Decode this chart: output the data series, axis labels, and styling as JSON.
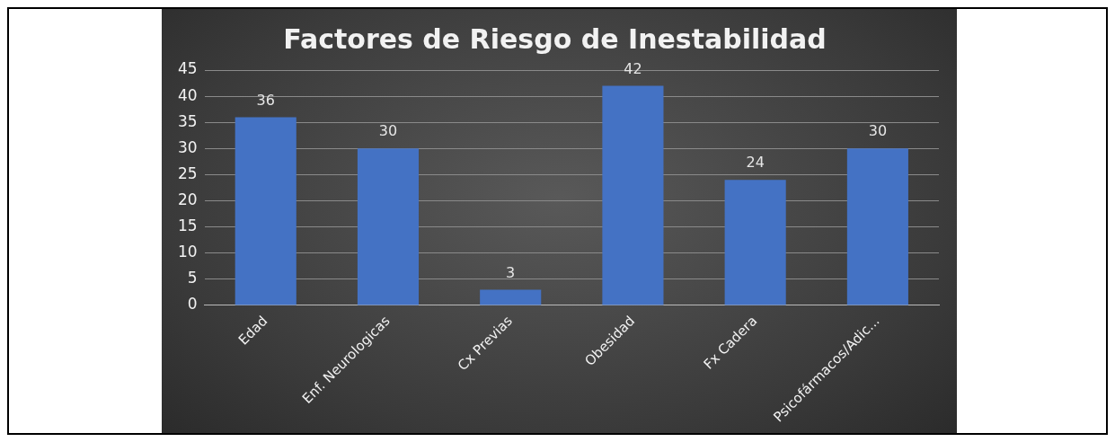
{
  "chart_data": {
    "type": "bar",
    "title": "Factores de Riesgo de Inestabilidad",
    "categories": [
      "Edad",
      "Enf. Neurologicas",
      "Cx Previas",
      "Obesidad",
      "Fx Cadera",
      "Psicofármacos/Adic..."
    ],
    "values": [
      36,
      30,
      3,
      42,
      24,
      30
    ],
    "color": "#4472c4",
    "ylim": [
      0,
      45
    ],
    "yticks": [
      0,
      5,
      10,
      15,
      20,
      25,
      30,
      35,
      40,
      45
    ],
    "grid": "y",
    "data_labels": true
  }
}
